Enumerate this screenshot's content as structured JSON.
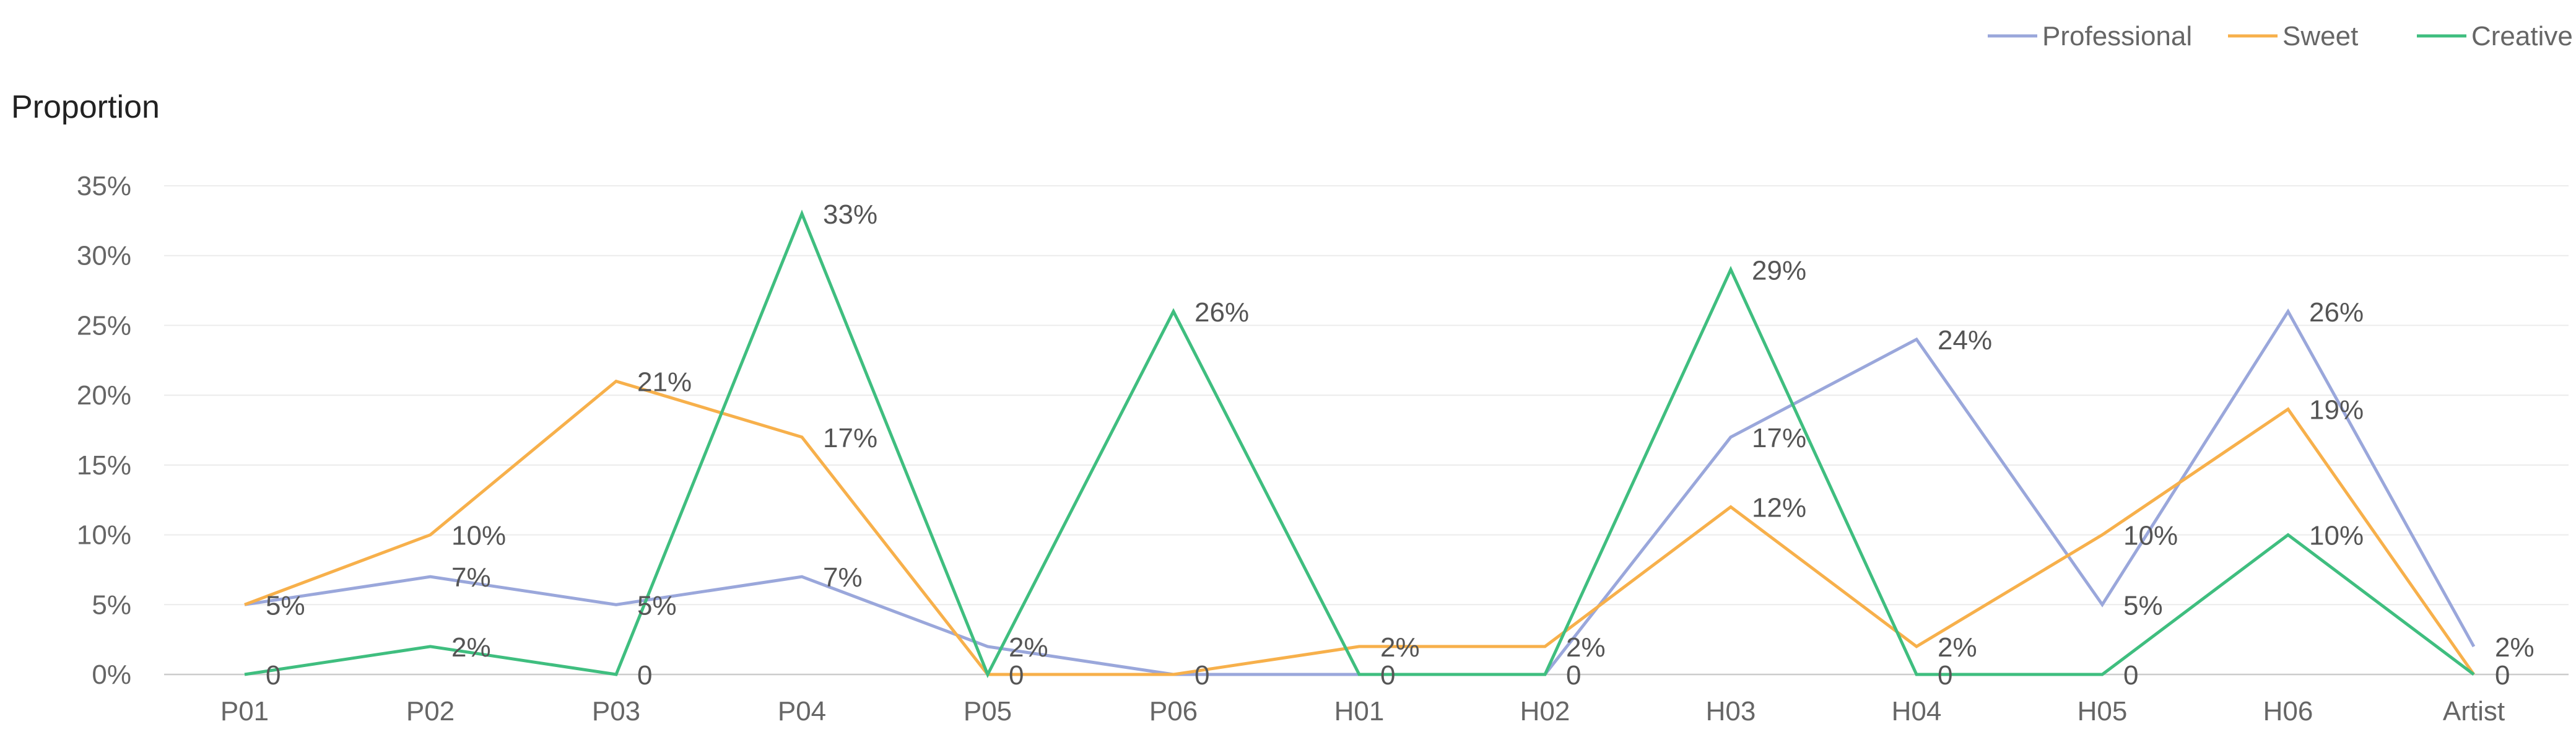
{
  "chart_data": {
    "type": "line",
    "ylabel": "Proportion",
    "categories": [
      "P01",
      "P02",
      "P03",
      "P04",
      "P05",
      "P06",
      "H01",
      "H02",
      "H03",
      "H04",
      "H05",
      "H06",
      "Artist"
    ],
    "y_ticks": [
      "0%",
      "5%",
      "10%",
      "15%",
      "20%",
      "25%",
      "30%",
      "35%"
    ],
    "ylim": [
      0,
      35
    ],
    "grid": true,
    "legend_position": "top-right",
    "series": [
      {
        "name": "Professional",
        "color": "#9aa7db",
        "values": [
          5,
          7,
          5,
          7,
          2,
          0,
          0,
          0,
          17,
          24,
          5,
          26,
          2
        ],
        "labels": [
          "5%",
          "7%",
          "5%",
          "7%",
          "2%",
          "0",
          "0",
          "0",
          "17%",
          "24%",
          "5%",
          "26%",
          "2%"
        ],
        "label_mask": [
          0,
          1,
          1,
          1,
          1,
          0,
          0,
          0,
          1,
          1,
          1,
          1,
          1
        ]
      },
      {
        "name": "Sweet",
        "color": "#f7b04b",
        "values": [
          5,
          10,
          21,
          17,
          0,
          0,
          2,
          2,
          12,
          2,
          10,
          19,
          0
        ],
        "labels": [
          "5%",
          "10%",
          "21%",
          "17%",
          "0",
          "0",
          "2%",
          "2%",
          "12%",
          "2%",
          "10%",
          "19%",
          "0"
        ],
        "label_mask": [
          1,
          1,
          1,
          1,
          1,
          1,
          1,
          1,
          1,
          1,
          1,
          1,
          0
        ]
      },
      {
        "name": "Creative",
        "color": "#3fbe7f",
        "values": [
          0,
          2,
          0,
          33,
          0,
          26,
          0,
          0,
          29,
          0,
          0,
          10,
          0
        ],
        "labels": [
          "0",
          "2%",
          "0",
          "33%",
          "0",
          "26%",
          "0",
          "0",
          "29%",
          "0",
          "0",
          "10%",
          "0"
        ],
        "label_mask": [
          1,
          1,
          1,
          1,
          0,
          1,
          1,
          1,
          1,
          1,
          1,
          1,
          1
        ]
      }
    ]
  }
}
